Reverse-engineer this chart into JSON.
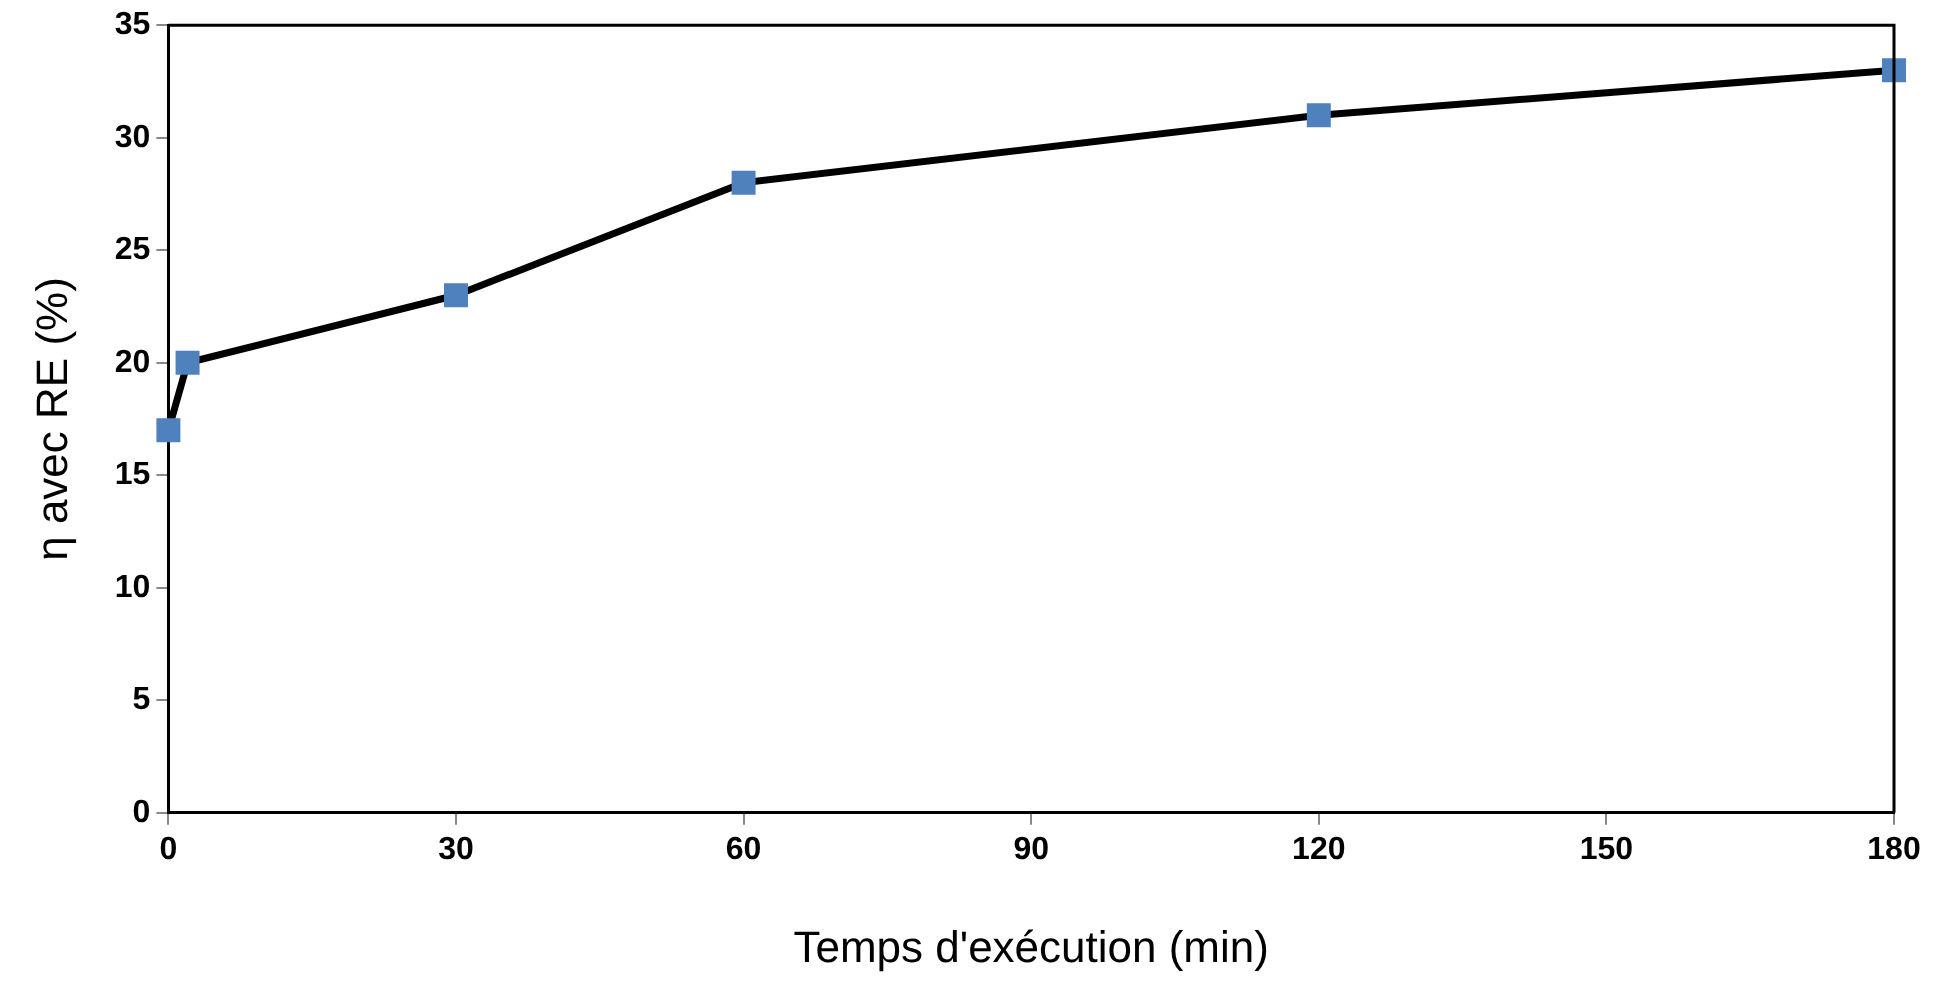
{
  "chart_data": {
    "type": "line",
    "xlabel": "Temps d'exécution (min)",
    "ylabel": "η avec RE (%)",
    "series": [
      {
        "x": [
          0,
          2,
          30,
          60,
          120,
          180
        ],
        "values": [
          17,
          20,
          23,
          28,
          31,
          33
        ],
        "color": "#000000",
        "colors": [
          "#4f81bd",
          "#4f81bd",
          "#4f81bd",
          "#4f81bd",
          "#4f81bd",
          "#4f81bd"
        ]
      }
    ],
    "marker": "square",
    "line_style": "solid",
    "grid": false,
    "legend": false,
    "xlim": [
      0,
      180
    ],
    "xticks": [
      0,
      30,
      60,
      90,
      120,
      150,
      180
    ],
    "ylim": [
      0,
      35
    ],
    "yticks": [
      0,
      5,
      10,
      15,
      20,
      25,
      30,
      35
    ]
  }
}
